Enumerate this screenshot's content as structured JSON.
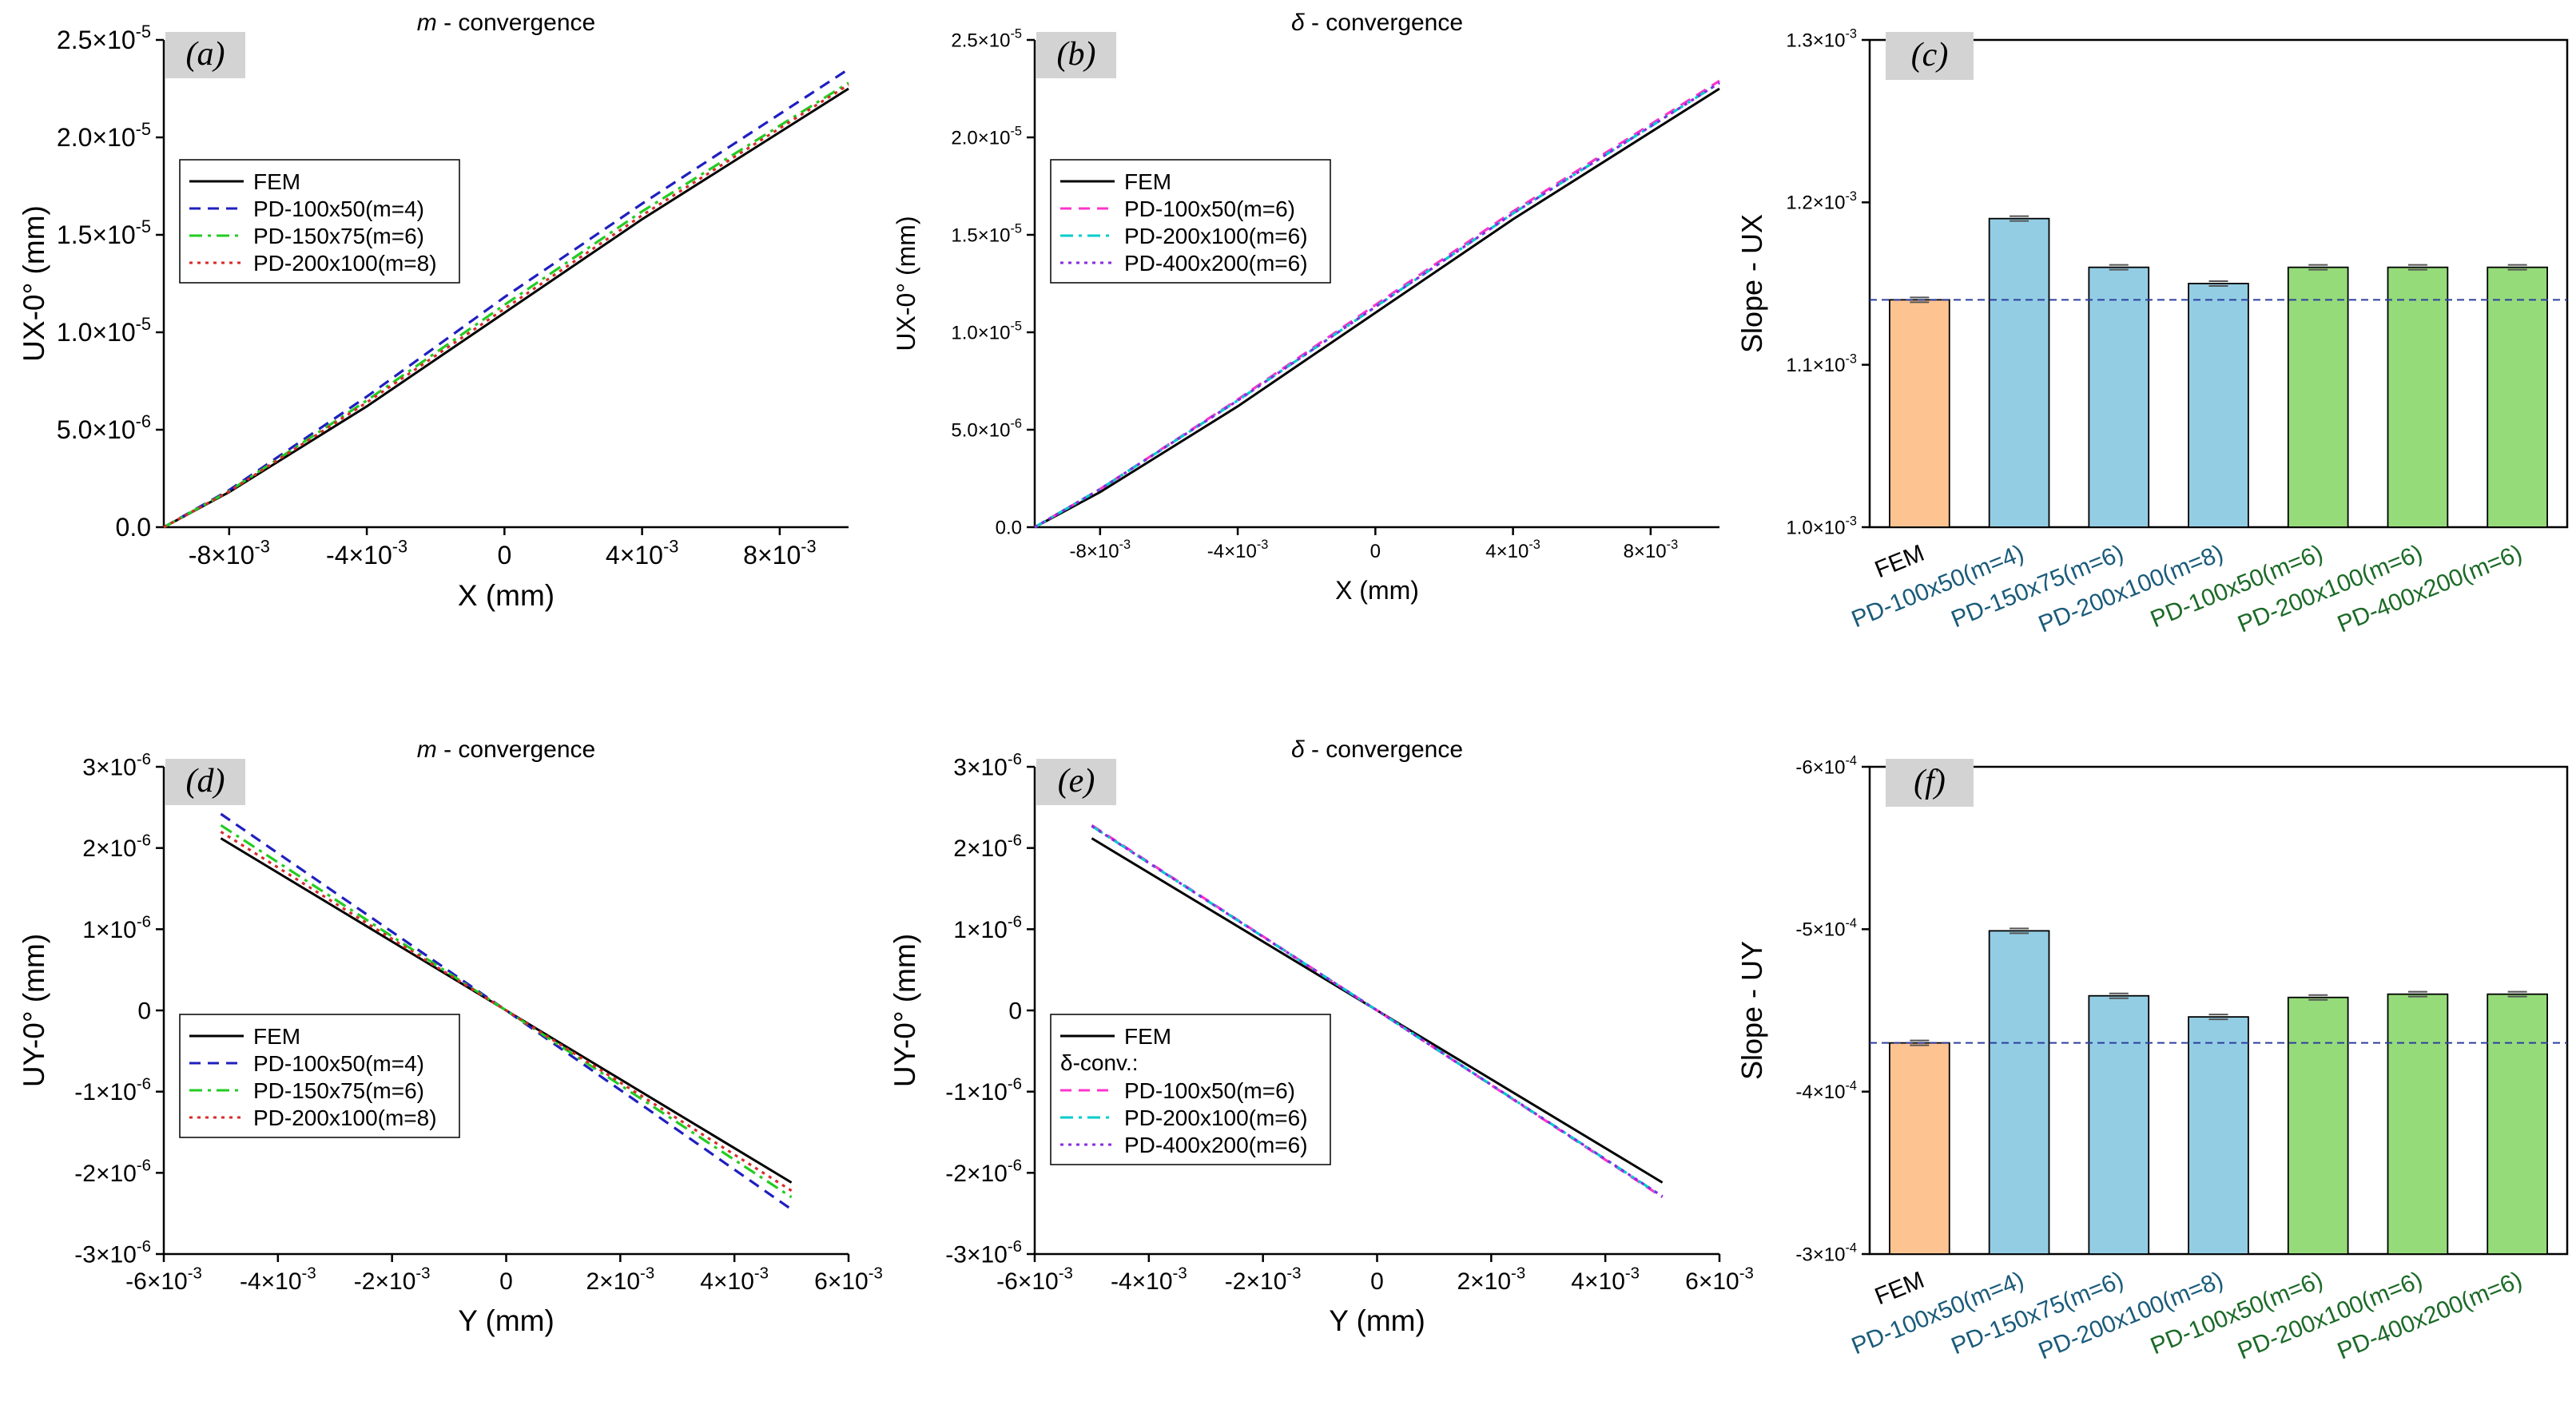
{
  "chart_data": [
    {
      "panel": "a",
      "type": "line",
      "title": "m - convergence",
      "title_italic": "m",
      "title_rest": " - convergence",
      "xlabel": "X (mm)",
      "ylabel": "UX-0° (mm)",
      "xlim": [
        -0.0099,
        0.01
      ],
      "ylim": [
        0,
        2.5e-05
      ],
      "xticks": [
        -0.008,
        -0.004,
        0,
        0.004,
        0.008
      ],
      "xtick_labels": [
        [
          "-8",
          "-3"
        ],
        [
          "-4",
          "-3"
        ],
        [
          "0",
          ""
        ],
        [
          "4",
          "-3"
        ],
        [
          "8",
          "-3"
        ]
      ],
      "yticks": [
        0,
        5e-06,
        1e-05,
        1.5e-05,
        2e-05,
        2.5e-05
      ],
      "ytick_labels": [
        [
          "0.0",
          ""
        ],
        [
          "5.0",
          "-6"
        ],
        [
          "1.0",
          "-5"
        ],
        [
          "1.5",
          "-5"
        ],
        [
          "2.0",
          "-5"
        ],
        [
          "2.5",
          "-5"
        ]
      ],
      "legend_position": "upper-left",
      "series": [
        {
          "name": "FEM",
          "color": "#000000",
          "dash": "solid",
          "points": [
            [
              -0.0099,
              0
            ],
            [
              -0.008,
              1.8e-06
            ],
            [
              -0.004,
              6.2e-06
            ],
            [
              0,
              1.1e-05
            ],
            [
              0.004,
              1.58e-05
            ],
            [
              0.01,
              2.25e-05
            ]
          ]
        },
        {
          "name": "PD-100x50(m=4)",
          "color": "#1f1fbf",
          "dash": "dashed",
          "points": [
            [
              -0.0099,
              0
            ],
            [
              -0.008,
              1.9e-06
            ],
            [
              -0.004,
              6.7e-06
            ],
            [
              0,
              1.18e-05
            ],
            [
              0.004,
              1.66e-05
            ],
            [
              0.01,
              2.35e-05
            ]
          ]
        },
        {
          "name": "PD-150x75(m=6)",
          "color": "#22cc22",
          "dash": "dashdot",
          "points": [
            [
              -0.0099,
              0
            ],
            [
              -0.008,
              1.85e-06
            ],
            [
              -0.004,
              6.5e-06
            ],
            [
              0,
              1.14e-05
            ],
            [
              0.004,
              1.62e-05
            ],
            [
              0.01,
              2.28e-05
            ]
          ]
        },
        {
          "name": "PD-200x100(m=8)",
          "color": "#d92a2a",
          "dash": "dotted",
          "points": [
            [
              -0.0099,
              0
            ],
            [
              -0.008,
              1.83e-06
            ],
            [
              -0.004,
              6.4e-06
            ],
            [
              0,
              1.12e-05
            ],
            [
              0.004,
              1.6e-05
            ],
            [
              0.01,
              2.27e-05
            ]
          ]
        }
      ]
    },
    {
      "panel": "b",
      "type": "line",
      "title": "δ - convergence",
      "title_italic": "δ",
      "title_rest": " - convergence",
      "xlabel": "X (mm)",
      "ylabel": "UX-0° (mm)",
      "xlim": [
        -0.0099,
        0.01
      ],
      "ylim": [
        0,
        2.5e-05
      ],
      "xticks": [
        -0.008,
        -0.004,
        0,
        0.004,
        0.008
      ],
      "xtick_labels": [
        [
          "-8",
          "-3"
        ],
        [
          "-4",
          "-3"
        ],
        [
          "0",
          ""
        ],
        [
          "4",
          "-3"
        ],
        [
          "8",
          "-3"
        ]
      ],
      "yticks": [
        0,
        5e-06,
        1e-05,
        1.5e-05,
        2e-05,
        2.5e-05
      ],
      "ytick_labels": [
        [
          "0.0",
          ""
        ],
        [
          "5.0",
          "-6"
        ],
        [
          "1.0",
          "-5"
        ],
        [
          "1.5",
          "-5"
        ],
        [
          "2.0",
          "-5"
        ],
        [
          "2.5",
          "-5"
        ]
      ],
      "legend_position": "upper-left",
      "series": [
        {
          "name": "FEM",
          "color": "#000000",
          "dash": "solid",
          "points": [
            [
              -0.0099,
              0
            ],
            [
              -0.008,
              1.8e-06
            ],
            [
              -0.004,
              6.2e-06
            ],
            [
              0,
              1.1e-05
            ],
            [
              0.004,
              1.58e-05
            ],
            [
              0.01,
              2.25e-05
            ]
          ]
        },
        {
          "name": "PD-100x50(m=6)",
          "color": "#ff33cc",
          "dash": "dashed",
          "points": [
            [
              -0.0099,
              0
            ],
            [
              -0.008,
              1.95e-06
            ],
            [
              -0.004,
              6.55e-06
            ],
            [
              0,
              1.14e-05
            ],
            [
              0.004,
              1.62e-05
            ],
            [
              0.01,
              2.29e-05
            ]
          ]
        },
        {
          "name": "PD-200x100(m=6)",
          "color": "#00cccc",
          "dash": "dashdot",
          "points": [
            [
              -0.0099,
              0
            ],
            [
              -0.008,
              1.95e-06
            ],
            [
              -0.004,
              6.5e-06
            ],
            [
              0,
              1.13e-05
            ],
            [
              0.004,
              1.61e-05
            ],
            [
              0.01,
              2.28e-05
            ]
          ]
        },
        {
          "name": "PD-400x200(m=6)",
          "color": "#8a2be2",
          "dash": "dotted",
          "points": [
            [
              -0.0099,
              0
            ],
            [
              -0.008,
              1.95e-06
            ],
            [
              -0.004,
              6.5e-06
            ],
            [
              0,
              1.13e-05
            ],
            [
              0.004,
              1.61e-05
            ],
            [
              0.01,
              2.28e-05
            ]
          ]
        }
      ]
    },
    {
      "panel": "c",
      "type": "bar",
      "ylabel": "Slope - UX",
      "ylim": [
        0.001,
        0.0013
      ],
      "yticks": [
        0.001,
        0.0011,
        0.0012,
        0.0013
      ],
      "ytick_labels": [
        [
          "1.0",
          "-3"
        ],
        [
          "1.1",
          "-3"
        ],
        [
          "1.2",
          "-3"
        ],
        [
          "1.3",
          "-3"
        ]
      ],
      "reference_line": 0.00114,
      "categories": [
        "FEM",
        "PD-100x50(m=4)",
        "PD-150x75(m=6)",
        "PD-200x100(m=8)",
        "PD-100x50(m=6)",
        "PD-200x100(m=6)",
        "PD-400x200(m=6)"
      ],
      "values": [
        0.00114,
        0.00119,
        0.00116,
        0.00115,
        0.00116,
        0.00116,
        0.00116
      ],
      "bar_colors": [
        "#fdc391",
        "#93cde4",
        "#93cde4",
        "#93cde4",
        "#95db7a",
        "#95db7a",
        "#95db7a"
      ],
      "label_colors": [
        "#000000",
        "#1a5b7a",
        "#1a5b7a",
        "#1a5b7a",
        "#1b6a27",
        "#1b6a27",
        "#1b6a27"
      ]
    },
    {
      "panel": "d",
      "type": "line",
      "title": "m - convergence",
      "title_italic": "m",
      "title_rest": " - convergence",
      "xlabel": "Y (mm)",
      "ylabel": "UY-0° (mm)",
      "xlim": [
        -0.006,
        0.006
      ],
      "ylim": [
        -3e-06,
        3e-06
      ],
      "xticks": [
        -0.006,
        -0.004,
        -0.002,
        0,
        0.002,
        0.004,
        0.006
      ],
      "xtick_labels": [
        [
          "-6",
          "-3"
        ],
        [
          "-4",
          "-3"
        ],
        [
          "-2",
          "-3"
        ],
        [
          "0",
          ""
        ],
        [
          "2",
          "-3"
        ],
        [
          "4",
          "-3"
        ],
        [
          "6",
          "-3"
        ]
      ],
      "yticks": [
        -3e-06,
        -2e-06,
        -1e-06,
        0,
        1e-06,
        2e-06,
        3e-06
      ],
      "ytick_labels": [
        [
          "-3",
          "-6"
        ],
        [
          "-2",
          "-6"
        ],
        [
          "-1",
          "-6"
        ],
        [
          "0",
          ""
        ],
        [
          "1",
          "-6"
        ],
        [
          "2",
          "-6"
        ],
        [
          "3",
          "-6"
        ]
      ],
      "legend_position": "lower-left",
      "series": [
        {
          "name": "FEM",
          "color": "#000000",
          "dash": "solid",
          "points": [
            [
              -0.005,
              2.12e-06
            ],
            [
              0,
              0
            ],
            [
              0.005,
              -2.12e-06
            ]
          ]
        },
        {
          "name": "PD-100x50(m=4)",
          "color": "#1f1fbf",
          "dash": "dashed",
          "points": [
            [
              -0.005,
              2.42e-06
            ],
            [
              0,
              0
            ],
            [
              0.005,
              -2.45e-06
            ]
          ]
        },
        {
          "name": "PD-150x75(m=6)",
          "color": "#22cc22",
          "dash": "dashdot",
          "points": [
            [
              -0.005,
              2.28e-06
            ],
            [
              0,
              0
            ],
            [
              0.005,
              -2.3e-06
            ]
          ]
        },
        {
          "name": "PD-200x100(m=8)",
          "color": "#d92a2a",
          "dash": "dotted",
          "points": [
            [
              -0.005,
              2.2e-06
            ],
            [
              0,
              0
            ],
            [
              0.005,
              -2.22e-06
            ]
          ]
        }
      ]
    },
    {
      "panel": "e",
      "type": "line",
      "title": "δ - convergence",
      "title_italic": "δ",
      "title_rest": " - convergence",
      "xlabel": "Y (mm)",
      "ylabel": "UY-0° (mm)",
      "xlim": [
        -0.006,
        0.006
      ],
      "ylim": [
        -3e-06,
        3e-06
      ],
      "xticks": [
        -0.006,
        -0.004,
        -0.002,
        0,
        0.002,
        0.004,
        0.006
      ],
      "xtick_labels": [
        [
          "-6",
          "-3"
        ],
        [
          "-4",
          "-3"
        ],
        [
          "-2",
          "-3"
        ],
        [
          "0",
          ""
        ],
        [
          "2",
          "-3"
        ],
        [
          "4",
          "-3"
        ],
        [
          "6",
          "-3"
        ]
      ],
      "yticks": [
        -3e-06,
        -2e-06,
        -1e-06,
        0,
        1e-06,
        2e-06,
        3e-06
      ],
      "ytick_labels": [
        [
          "-3",
          "-6"
        ],
        [
          "-2",
          "-6"
        ],
        [
          "-1",
          "-6"
        ],
        [
          "0",
          ""
        ],
        [
          "1",
          "-6"
        ],
        [
          "2",
          "-6"
        ],
        [
          "3",
          "-6"
        ]
      ],
      "legend_position": "lower-left",
      "legend_subheading": "δ-conv.:",
      "series": [
        {
          "name": "FEM",
          "color": "#000000",
          "dash": "solid",
          "points": [
            [
              -0.005,
              2.12e-06
            ],
            [
              0,
              0
            ],
            [
              0.005,
              -2.12e-06
            ]
          ]
        },
        {
          "name": "PD-100x50(m=6)",
          "color": "#ff33cc",
          "dash": "dashed",
          "points": [
            [
              -0.005,
              2.28e-06
            ],
            [
              0,
              0
            ],
            [
              0.005,
              -2.3e-06
            ]
          ]
        },
        {
          "name": "PD-200x100(m=6)",
          "color": "#00cccc",
          "dash": "dashdot",
          "points": [
            [
              -0.005,
              2.27e-06
            ],
            [
              0,
              0
            ],
            [
              0.005,
              -2.29e-06
            ]
          ]
        },
        {
          "name": "PD-400x200(m=6)",
          "color": "#8a2be2",
          "dash": "dotted",
          "points": [
            [
              -0.005,
              2.27e-06
            ],
            [
              0,
              0
            ],
            [
              0.005,
              -2.29e-06
            ]
          ]
        }
      ]
    },
    {
      "panel": "f",
      "type": "bar",
      "ylabel": "Slope - UY",
      "ylim": [
        -0.0003,
        -0.0006
      ],
      "yticks": [
        -0.0003,
        -0.0004,
        -0.0005,
        -0.0006
      ],
      "ytick_labels": [
        [
          "-3",
          "-4"
        ],
        [
          "-4",
          "-4"
        ],
        [
          "-5",
          "-4"
        ],
        [
          "-6",
          "-4"
        ]
      ],
      "reference_line": -0.00043,
      "categories": [
        "FEM",
        "PD-100x50(m=4)",
        "PD-150x75(m=6)",
        "PD-200x100(m=8)",
        "PD-100x50(m=6)",
        "PD-200x100(m=6)",
        "PD-400x200(m=6)"
      ],
      "values": [
        -0.00043,
        -0.000499,
        -0.000459,
        -0.000446,
        -0.000458,
        -0.00046,
        -0.00046
      ],
      "bar_colors": [
        "#fdc391",
        "#93cde4",
        "#93cde4",
        "#93cde4",
        "#95db7a",
        "#95db7a",
        "#95db7a"
      ],
      "label_colors": [
        "#000000",
        "#1a5b7a",
        "#1a5b7a",
        "#1a5b7a",
        "#1b6a27",
        "#1b6a27",
        "#1b6a27"
      ]
    }
  ]
}
